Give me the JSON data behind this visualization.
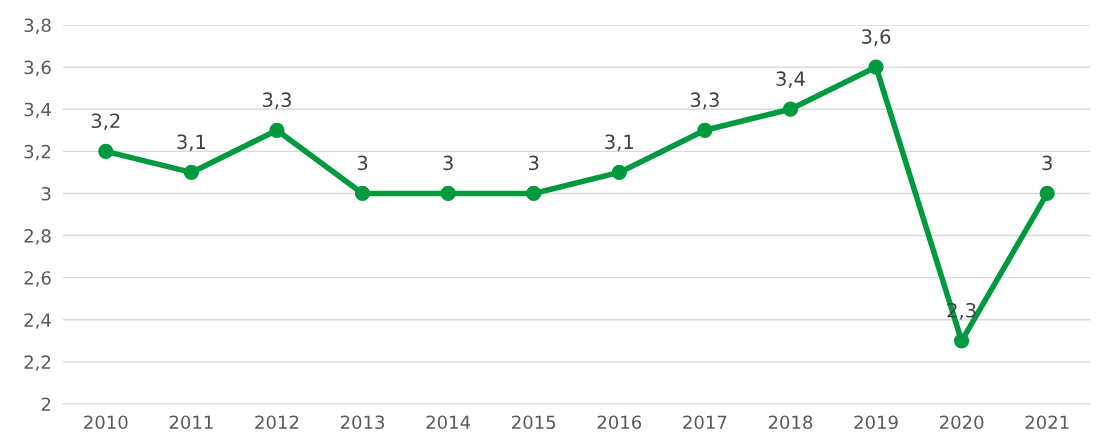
{
  "chart_data": {
    "type": "line",
    "categories": [
      "2010",
      "2011",
      "2012",
      "2013",
      "2014",
      "2015",
      "2016",
      "2017",
      "2018",
      "2019",
      "2020",
      "2021"
    ],
    "series": [
      {
        "color": "#009a3e",
        "values": [
          3.2,
          3.1,
          3.3,
          3,
          3,
          3,
          3.1,
          3.3,
          3.4,
          3.6,
          2.3,
          3
        ],
        "value_labels": [
          "3,2",
          "3,1",
          "3,3",
          "3",
          "3",
          "3",
          "3,1",
          "3,3",
          "3,4",
          "3,6",
          "2,3",
          "3"
        ]
      }
    ],
    "ylim": [
      2,
      3.8
    ],
    "yticks": [
      2,
      {
        "value": 2.2,
        "label": "2,2"
      },
      {
        "value": 2.4,
        "label": "2,4"
      },
      {
        "value": 2.6,
        "label": "2,6"
      },
      {
        "value": 2.8,
        "label": "2,8"
      },
      3,
      {
        "value": 3.2,
        "label": "3,2"
      },
      {
        "value": 3.4,
        "label": "3,4"
      },
      {
        "value": 3.6,
        "label": "3,6"
      },
      {
        "value": 3.8,
        "label": "3,8"
      }
    ],
    "grid": "y",
    "marker": "circle",
    "line_style": "solid"
  }
}
